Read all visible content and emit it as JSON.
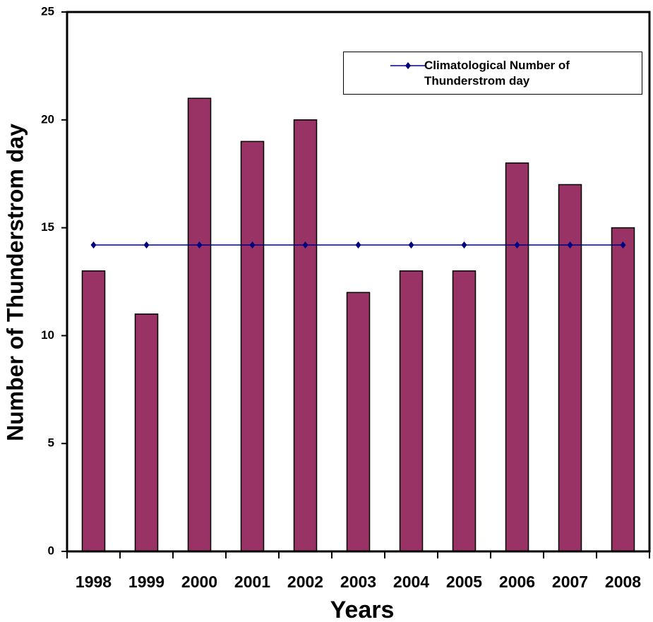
{
  "chart_data": {
    "type": "bar",
    "x_label": "Years",
    "y_label": "Number of Thunderstrom day",
    "categories": [
      "1998",
      "1999",
      "2000",
      "2001",
      "2002",
      "2003",
      "2004",
      "2005",
      "2006",
      "2007",
      "2008"
    ],
    "series": [
      {
        "type": "bar",
        "color": "#993366",
        "values": [
          13,
          11,
          21,
          19,
          20,
          12,
          13,
          13,
          18,
          17,
          15
        ]
      },
      {
        "type": "line",
        "name": "Climatological Number of Thunderstrom day",
        "color": "#000080",
        "values": [
          14.2,
          14.2,
          14.2,
          14.2,
          14.2,
          14.2,
          14.2,
          14.2,
          14.2,
          14.2,
          14.2
        ]
      }
    ],
    "ylim": [
      0,
      25
    ],
    "yticks": [
      0,
      5,
      10,
      15,
      20,
      25
    ],
    "grid": false
  }
}
